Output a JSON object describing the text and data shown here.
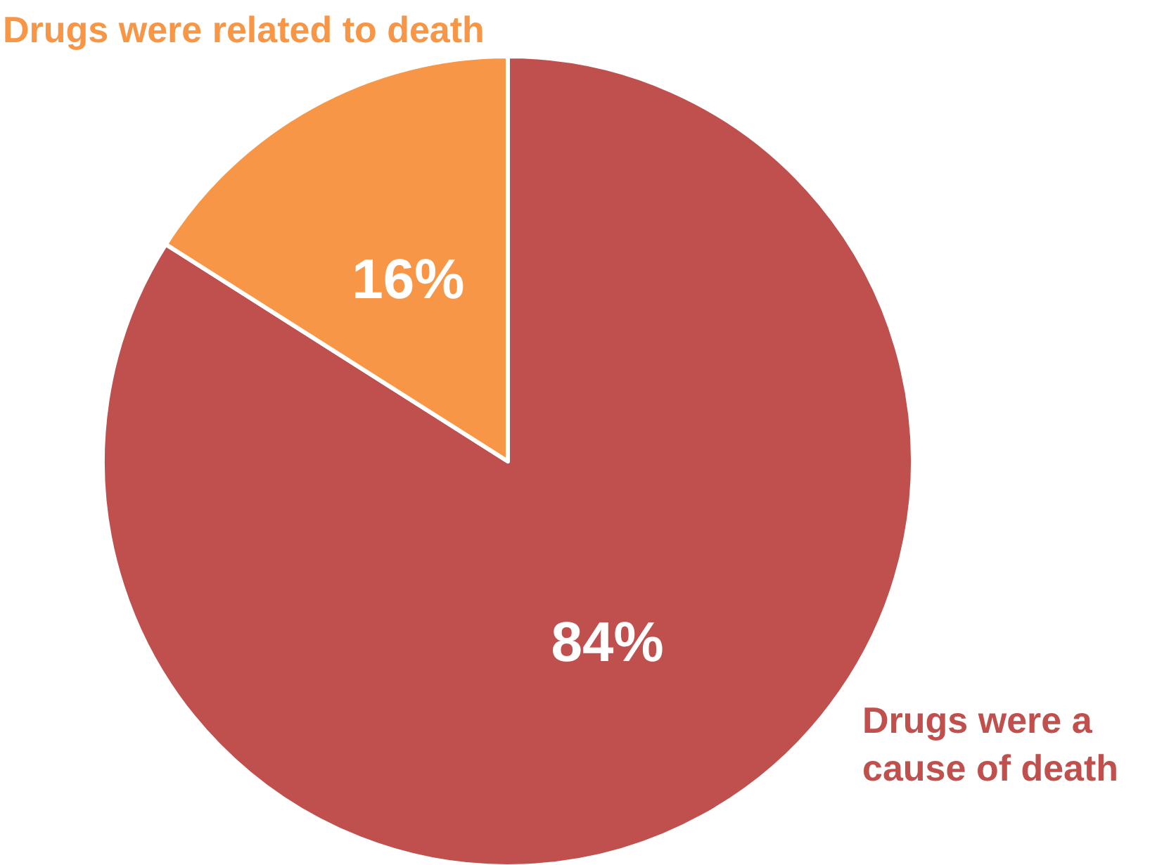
{
  "chart_data": {
    "type": "pie",
    "categories": [
      "Drugs were a cause of death",
      "Drugs were related to death"
    ],
    "values": [
      84,
      16
    ],
    "colors": [
      "#c0504d",
      "#f79646"
    ],
    "value_labels": [
      "84%",
      "16%"
    ]
  }
}
